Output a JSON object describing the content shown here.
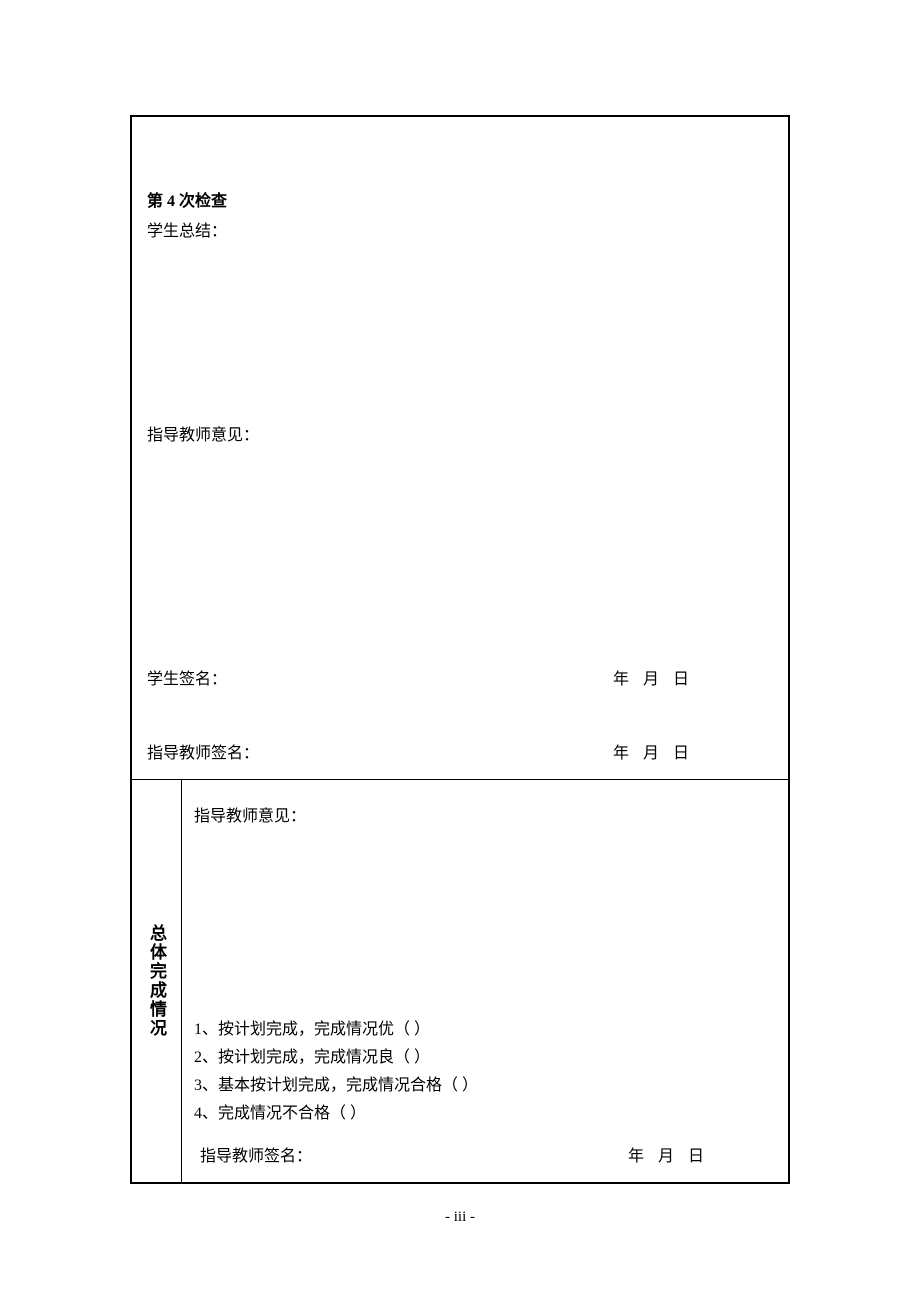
{
  "section_top": {
    "check_title": "第 4 次检查",
    "student_summary_label": "学生总结：",
    "teacher_opinion_label": "指导教师意见：",
    "student_signature_label": "学生签名：",
    "teacher_signature_label": "指导教师签名：",
    "date_text": "年月日"
  },
  "section_bottom": {
    "vertical_label": "总体完成情况",
    "teacher_opinion_label": "指导教师意见：",
    "checklist": {
      "item1": "1、按计划完成，完成情况优（ ）",
      "item2": "2、按计划完成，完成情况良（ ）",
      "item3": "3、基本按计划完成，完成情况合格（ ）",
      "item4": "4、完成情况不合格（ ）"
    },
    "teacher_signature_label": "指导教师签名：",
    "date_text": "年月日"
  },
  "page_number": "- iii -"
}
